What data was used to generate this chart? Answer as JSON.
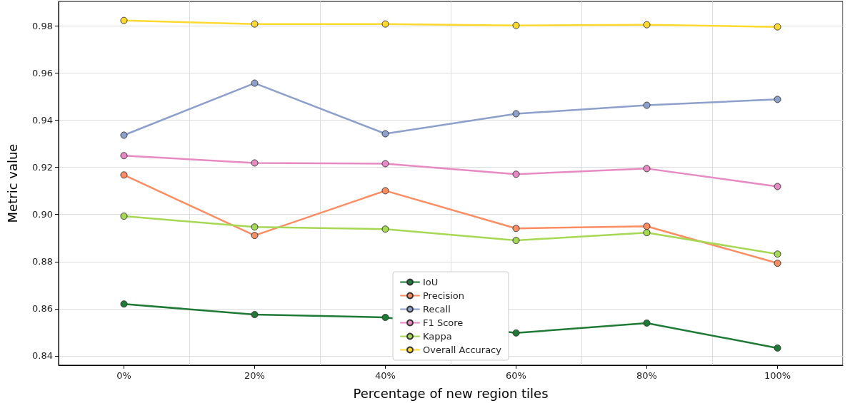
{
  "chart_data": {
    "type": "line",
    "xlabel": "Percentage of new region tiles",
    "ylabel": "Metric value",
    "categories": [
      "0%",
      "20%",
      "40%",
      "60%",
      "80%",
      "100%"
    ],
    "series": [
      {
        "name": "IoU",
        "color": "#1f7a36",
        "values": [
          0.862,
          0.8575,
          0.8563,
          0.8497,
          0.8539,
          0.8433
        ]
      },
      {
        "name": "Precision",
        "color": "#fc8d62",
        "values": [
          0.9168,
          0.8911,
          0.9101,
          0.8941,
          0.895,
          0.8793
        ]
      },
      {
        "name": "Recall",
        "color": "#8da0cb",
        "values": [
          0.9337,
          0.9558,
          0.9343,
          0.9428,
          0.9464,
          0.9489
        ]
      },
      {
        "name": "F1 Score",
        "color": "#e78ac3",
        "values": [
          0.925,
          0.9219,
          0.9216,
          0.9171,
          0.9195,
          0.9119
        ]
      },
      {
        "name": "Kappa",
        "color": "#a6d854",
        "values": [
          0.8993,
          0.8947,
          0.8938,
          0.889,
          0.8923,
          0.8832
        ]
      },
      {
        "name": "Overall Accuracy",
        "color": "#ffd92f",
        "values": [
          0.9824,
          0.9809,
          0.9809,
          0.9803,
          0.9806,
          0.9797
        ]
      }
    ],
    "ylim": [
      0.836,
      0.9905
    ],
    "yticks": [
      0.84,
      0.86,
      0.88,
      {
        "value": 0.9,
        "label": "0.90"
      },
      0.92,
      0.94,
      0.96,
      0.98
    ],
    "grid": true,
    "legend": "bottom",
    "marker": "circle",
    "line_style": "solid"
  }
}
